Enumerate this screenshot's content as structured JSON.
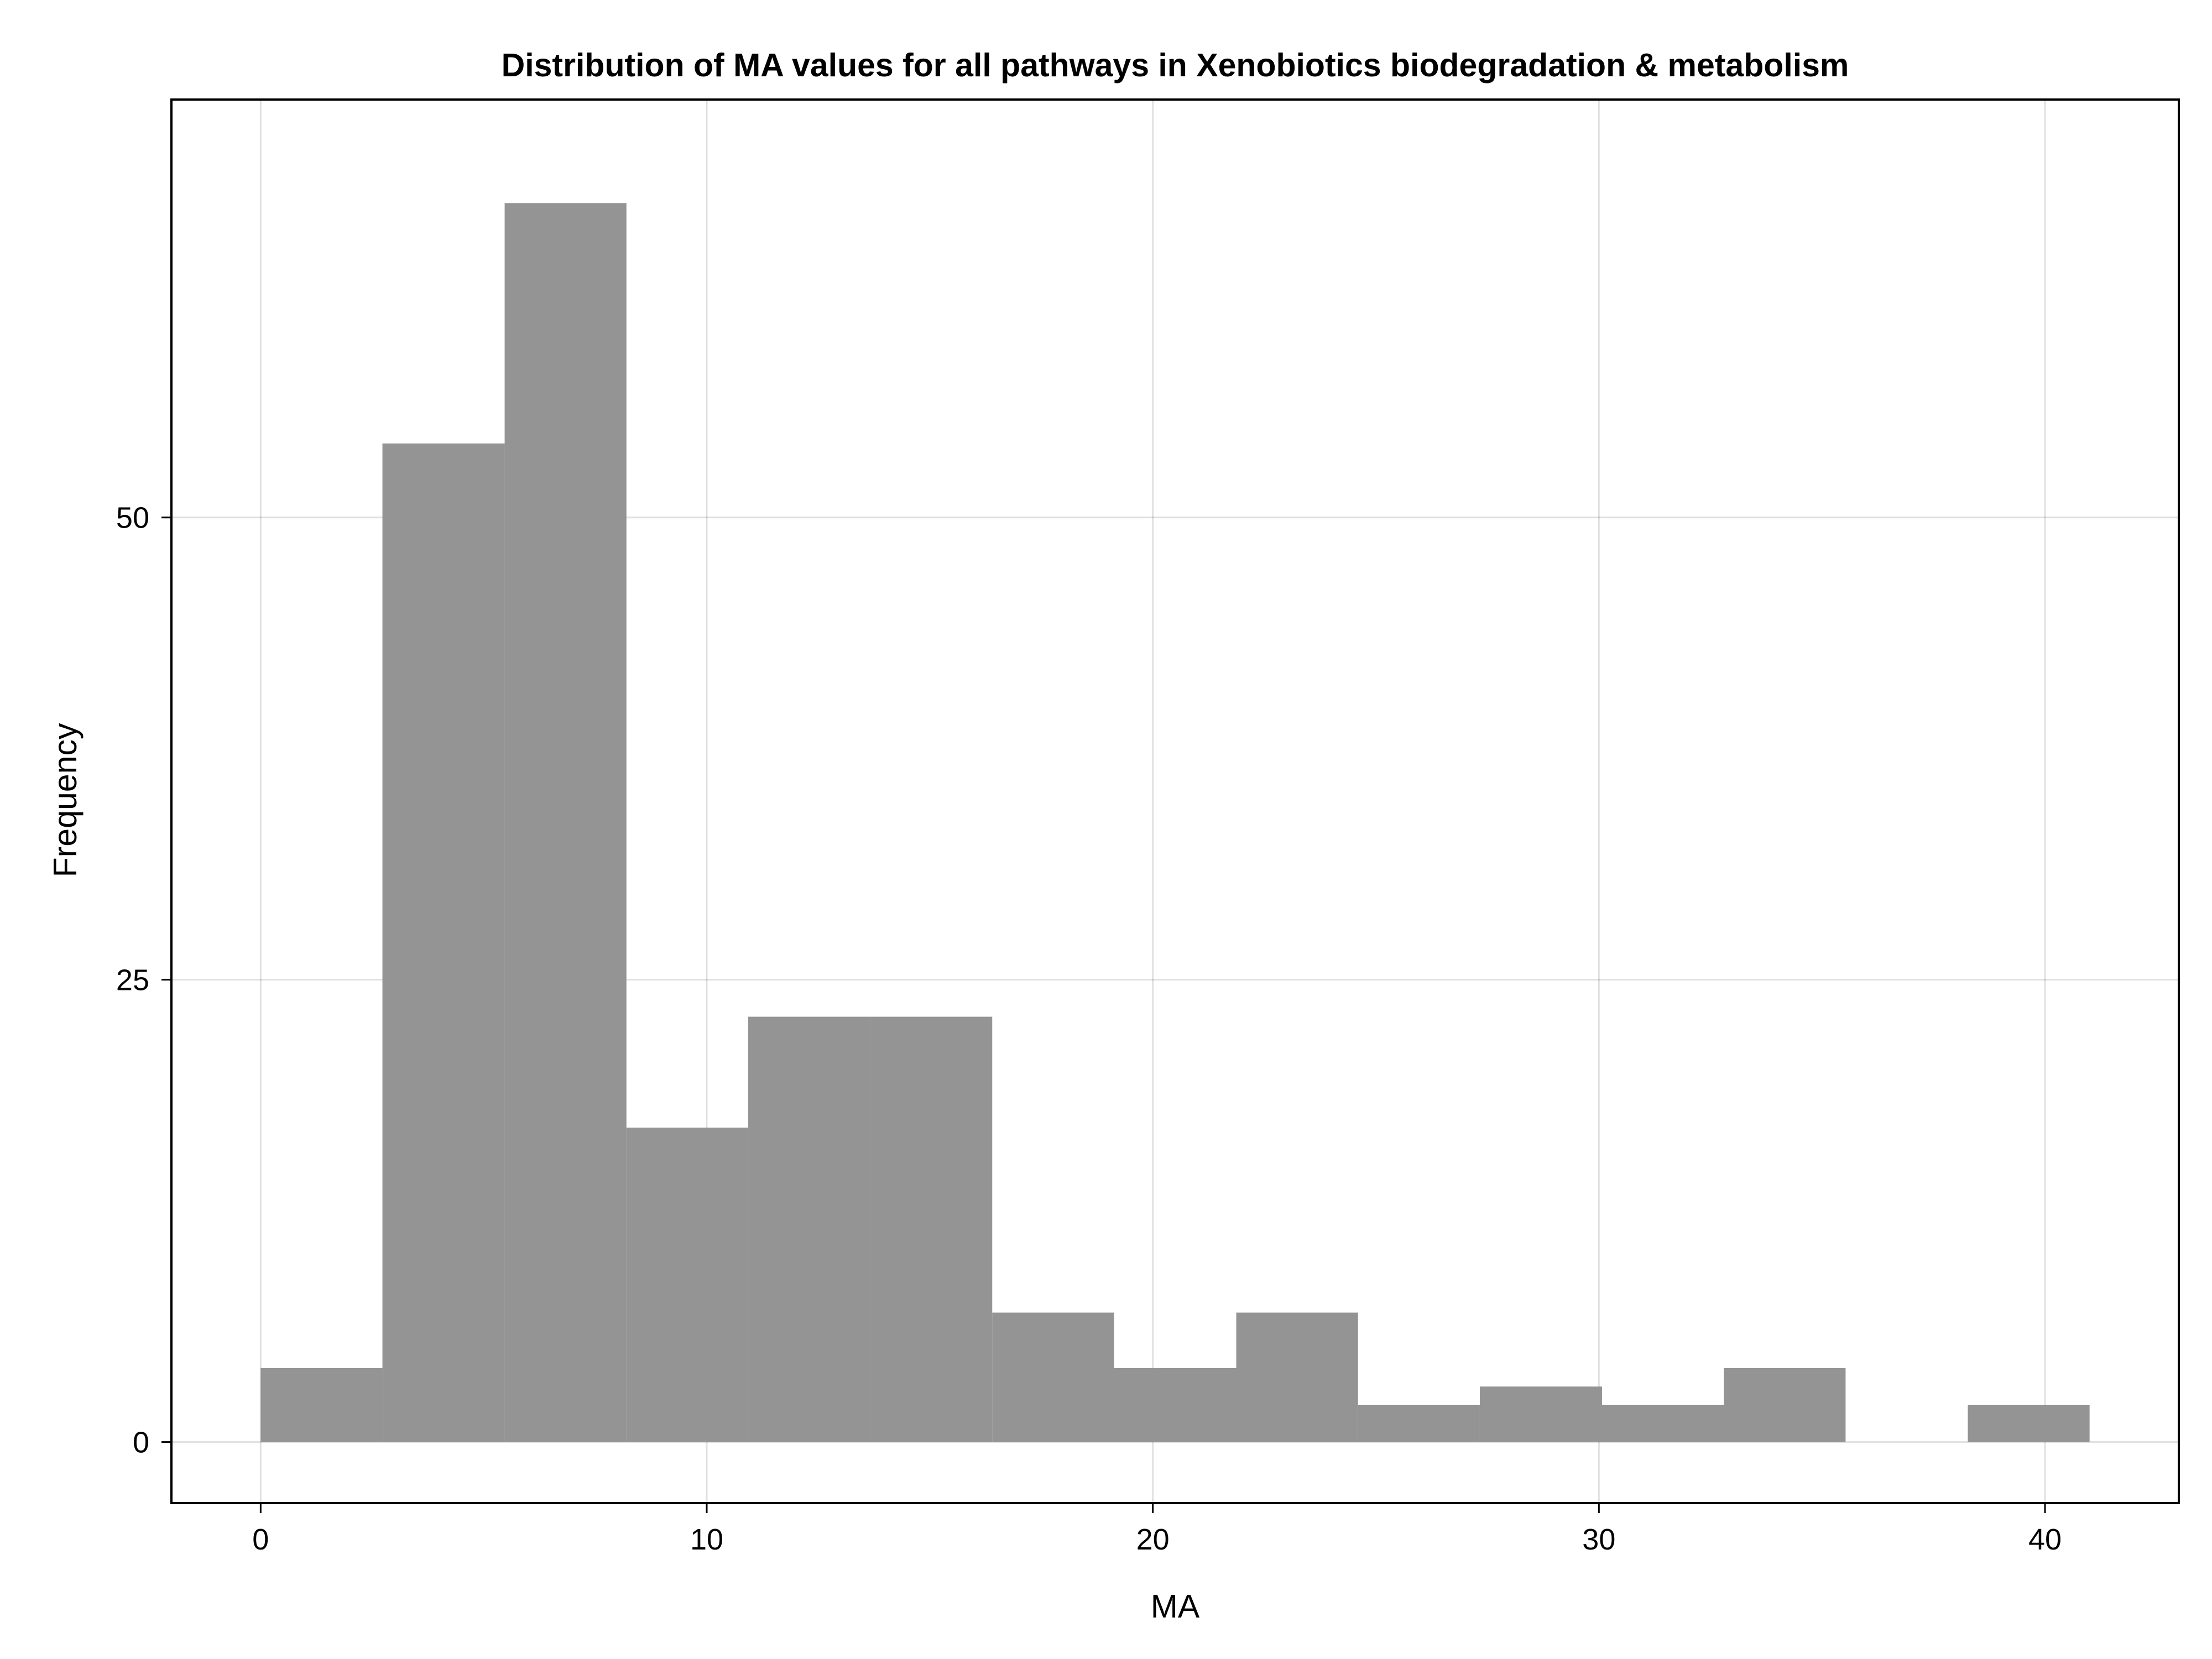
{
  "chart_data": {
    "type": "bar",
    "subtype": "histogram",
    "title": "Distribution of MA values for all pathways in Xenobiotics biodegradation & metabolism",
    "xlabel": "MA",
    "ylabel": "Frequency",
    "xlim": [
      -2,
      43
    ],
    "ylim": [
      -3.3,
      72.6
    ],
    "xticks": [
      0,
      10,
      20,
      30,
      40
    ],
    "yticks": [
      0,
      25,
      50
    ],
    "grid": true,
    "bar_color": "#949494",
    "bin_edges": [
      0,
      2.73,
      5.47,
      8.2,
      10.93,
      13.67,
      16.4,
      19.13,
      21.87,
      24.6,
      27.33,
      30.07,
      32.8,
      35.53,
      38.27,
      41
    ],
    "values": [
      4,
      54,
      67,
      17,
      23,
      23,
      7,
      4,
      7,
      2,
      3,
      2,
      4,
      0,
      2
    ]
  }
}
